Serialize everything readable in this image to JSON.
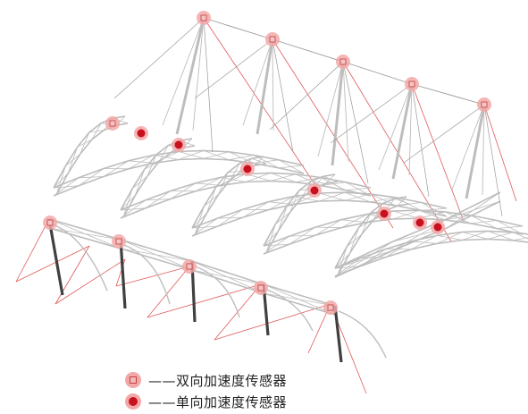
{
  "legend": {
    "biaxial_label": "——双向加速度传感器",
    "uniaxial_label": "——单向加速度传感器"
  },
  "colors": {
    "sensor_halo": "#f2a8a8",
    "uniaxial_dot": "#c8101e",
    "biaxial_core": "#f6c4c4",
    "steel_light": "#bdbdbd",
    "steel_dark": "#404040",
    "cable": "#e05a5a",
    "tie": "#9a9a9a"
  },
  "icons": {
    "biaxial": "square-in-circle-icon",
    "uniaxial": "filled-dot-icon"
  }
}
